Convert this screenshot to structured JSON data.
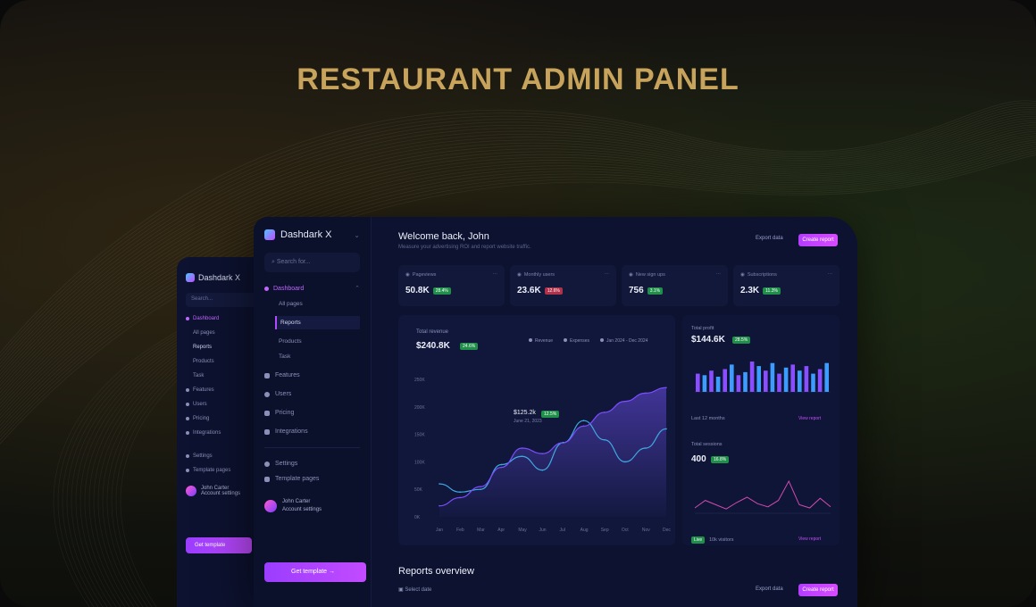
{
  "hero": {
    "title": "RESTAURANT ADMIN PANEL"
  },
  "back_panel": {
    "brand": "Dashdark X",
    "search": "Search...",
    "nav": [
      "Dashboard",
      "All pages",
      "Reports",
      "Products",
      "Task",
      "Features",
      "Users",
      "Pricing",
      "Integrations"
    ],
    "settings": [
      "Settings",
      "Template pages"
    ],
    "user": {
      "name": "John Carter",
      "role": "Account settings"
    },
    "cta": "Get template"
  },
  "sidebar": {
    "brand": "Dashdark X",
    "search_placeholder": "Search for...",
    "group": "Dashboard",
    "sub_items": [
      "All pages",
      "Reports",
      "Products",
      "Task"
    ],
    "active_sub": "Reports",
    "nav_items": [
      "Features",
      "Users",
      "Pricing",
      "Integrations"
    ],
    "bottom_items": [
      "Settings",
      "Template pages"
    ],
    "user": {
      "name": "John Carter",
      "role": "Account settings"
    },
    "cta": "Get template →"
  },
  "header": {
    "greeting": "Welcome back, John",
    "subtitle": "Measure your advertising ROI and report website traffic.",
    "export_label": "Export data",
    "create_button": "Create report"
  },
  "stats": [
    {
      "label": "Pageviews",
      "value": "50.8K",
      "change": "28.4%",
      "trend": "up"
    },
    {
      "label": "Monthly users",
      "value": "23.6K",
      "change": "12.6%",
      "trend": "down"
    },
    {
      "label": "New sign ups",
      "value": "756",
      "change": "3.1%",
      "trend": "up"
    },
    {
      "label": "Subscriptions",
      "value": "2.3K",
      "change": "11.3%",
      "trend": "up"
    }
  ],
  "main_chart": {
    "title": "Total revenue",
    "value": "$240.8K",
    "badge": "24.6%",
    "legend": [
      "Revenue",
      "Expenses",
      "Jan 2024 - Dec 2024"
    ],
    "tooltip_value": "$125.2k",
    "tooltip_badge": "12.5%",
    "tooltip_sub": "June 21, 2023",
    "colors": {
      "series_a": "#7b4dff",
      "series_b": "#3fa9e0",
      "fill": "#4a3aa8"
    }
  },
  "chart_data": {
    "type": "area",
    "title": "Total revenue",
    "x": [
      "Jan",
      "Feb",
      "Mar",
      "Apr",
      "May",
      "Jun",
      "Jul",
      "Aug",
      "Sep",
      "Oct",
      "Nov",
      "Dec"
    ],
    "ylabels": [
      "250K",
      "200K",
      "150K",
      "100K",
      "50K",
      "0K"
    ],
    "ylim": [
      0,
      250
    ],
    "series": [
      {
        "name": "Revenue",
        "values": [
          20,
          35,
          55,
          90,
          125,
          115,
          135,
          165,
          190,
          210,
          225,
          235
        ]
      },
      {
        "name": "Expenses",
        "values": [
          60,
          45,
          50,
          95,
          110,
          85,
          135,
          175,
          140,
          100,
          125,
          160
        ]
      }
    ],
    "grid": false,
    "legend_position": "top-right"
  },
  "side_panel": {
    "top_label": "Total profit",
    "top_value": "$144.6K",
    "top_badge": "28.5%",
    "top_footer": "Last 12 months",
    "top_link": "View report",
    "bottom_label": "Total sessions",
    "bottom_value": "400",
    "bottom_badge": "16.8%",
    "bottom_footer_badge": "Live",
    "bottom_footer_text": "10k visitors",
    "bottom_link": "View report",
    "bar_values": [
      60,
      55,
      70,
      50,
      75,
      90,
      55,
      65,
      100,
      85,
      70,
      95,
      60,
      80,
      90,
      70,
      85,
      60,
      75,
      95
    ],
    "spark_values": [
      5,
      12,
      8,
      4,
      10,
      15,
      9,
      6,
      12,
      30,
      8,
      5,
      14,
      6
    ]
  },
  "reports": {
    "title": "Reports overview",
    "filter": "Select date",
    "export_label": "Export data",
    "create_button": "Create report"
  }
}
